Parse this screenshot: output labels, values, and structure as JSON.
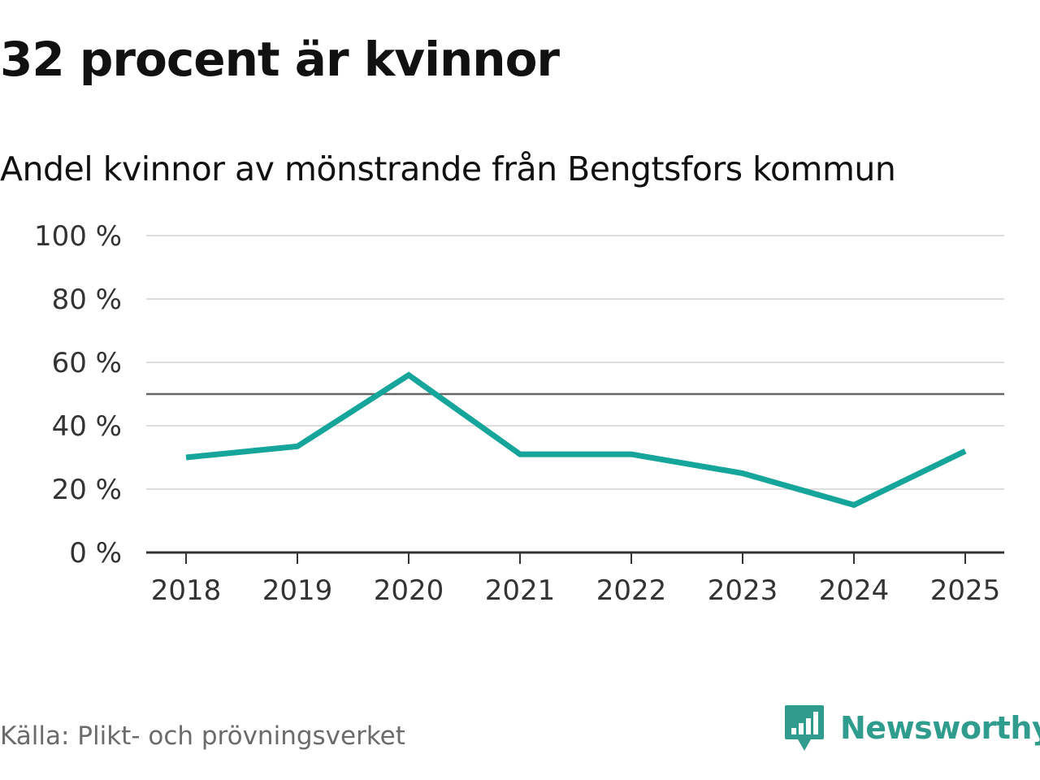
{
  "chart_data": {
    "type": "line",
    "title": "32 procent är kvinnor",
    "subtitle": "Andel kvinnor av mönstrande från Bengtsfors kommun",
    "categories": [
      "2018",
      "2019",
      "2020",
      "2021",
      "2022",
      "2023",
      "2024",
      "2025"
    ],
    "series": [
      {
        "name": "Andel kvinnor",
        "values": [
          30,
          33.5,
          56,
          31,
          31,
          25,
          15,
          32
        ],
        "color": "#16a59a"
      }
    ],
    "reference_line": 50,
    "ylim": [
      0,
      100
    ],
    "yticks": [
      0,
      20,
      40,
      60,
      80,
      100
    ],
    "ytick_labels": [
      "0 %",
      "20 %",
      "40 %",
      "60 %",
      "80 %",
      "100 %"
    ],
    "xlabel": "",
    "ylabel": "",
    "grid": true,
    "legend": "none"
  },
  "source": "Källa: Plikt- och prövningsverket",
  "brand": {
    "name": "Newsworthy",
    "icon": "newsworthy-logo-icon",
    "color": "#2f9c8e"
  },
  "colors": {
    "line": "#16a59a",
    "grid": "#dddddd",
    "axis": "#333333",
    "reference": "#666666",
    "text": "#111111",
    "muted": "#6b6b6b"
  }
}
